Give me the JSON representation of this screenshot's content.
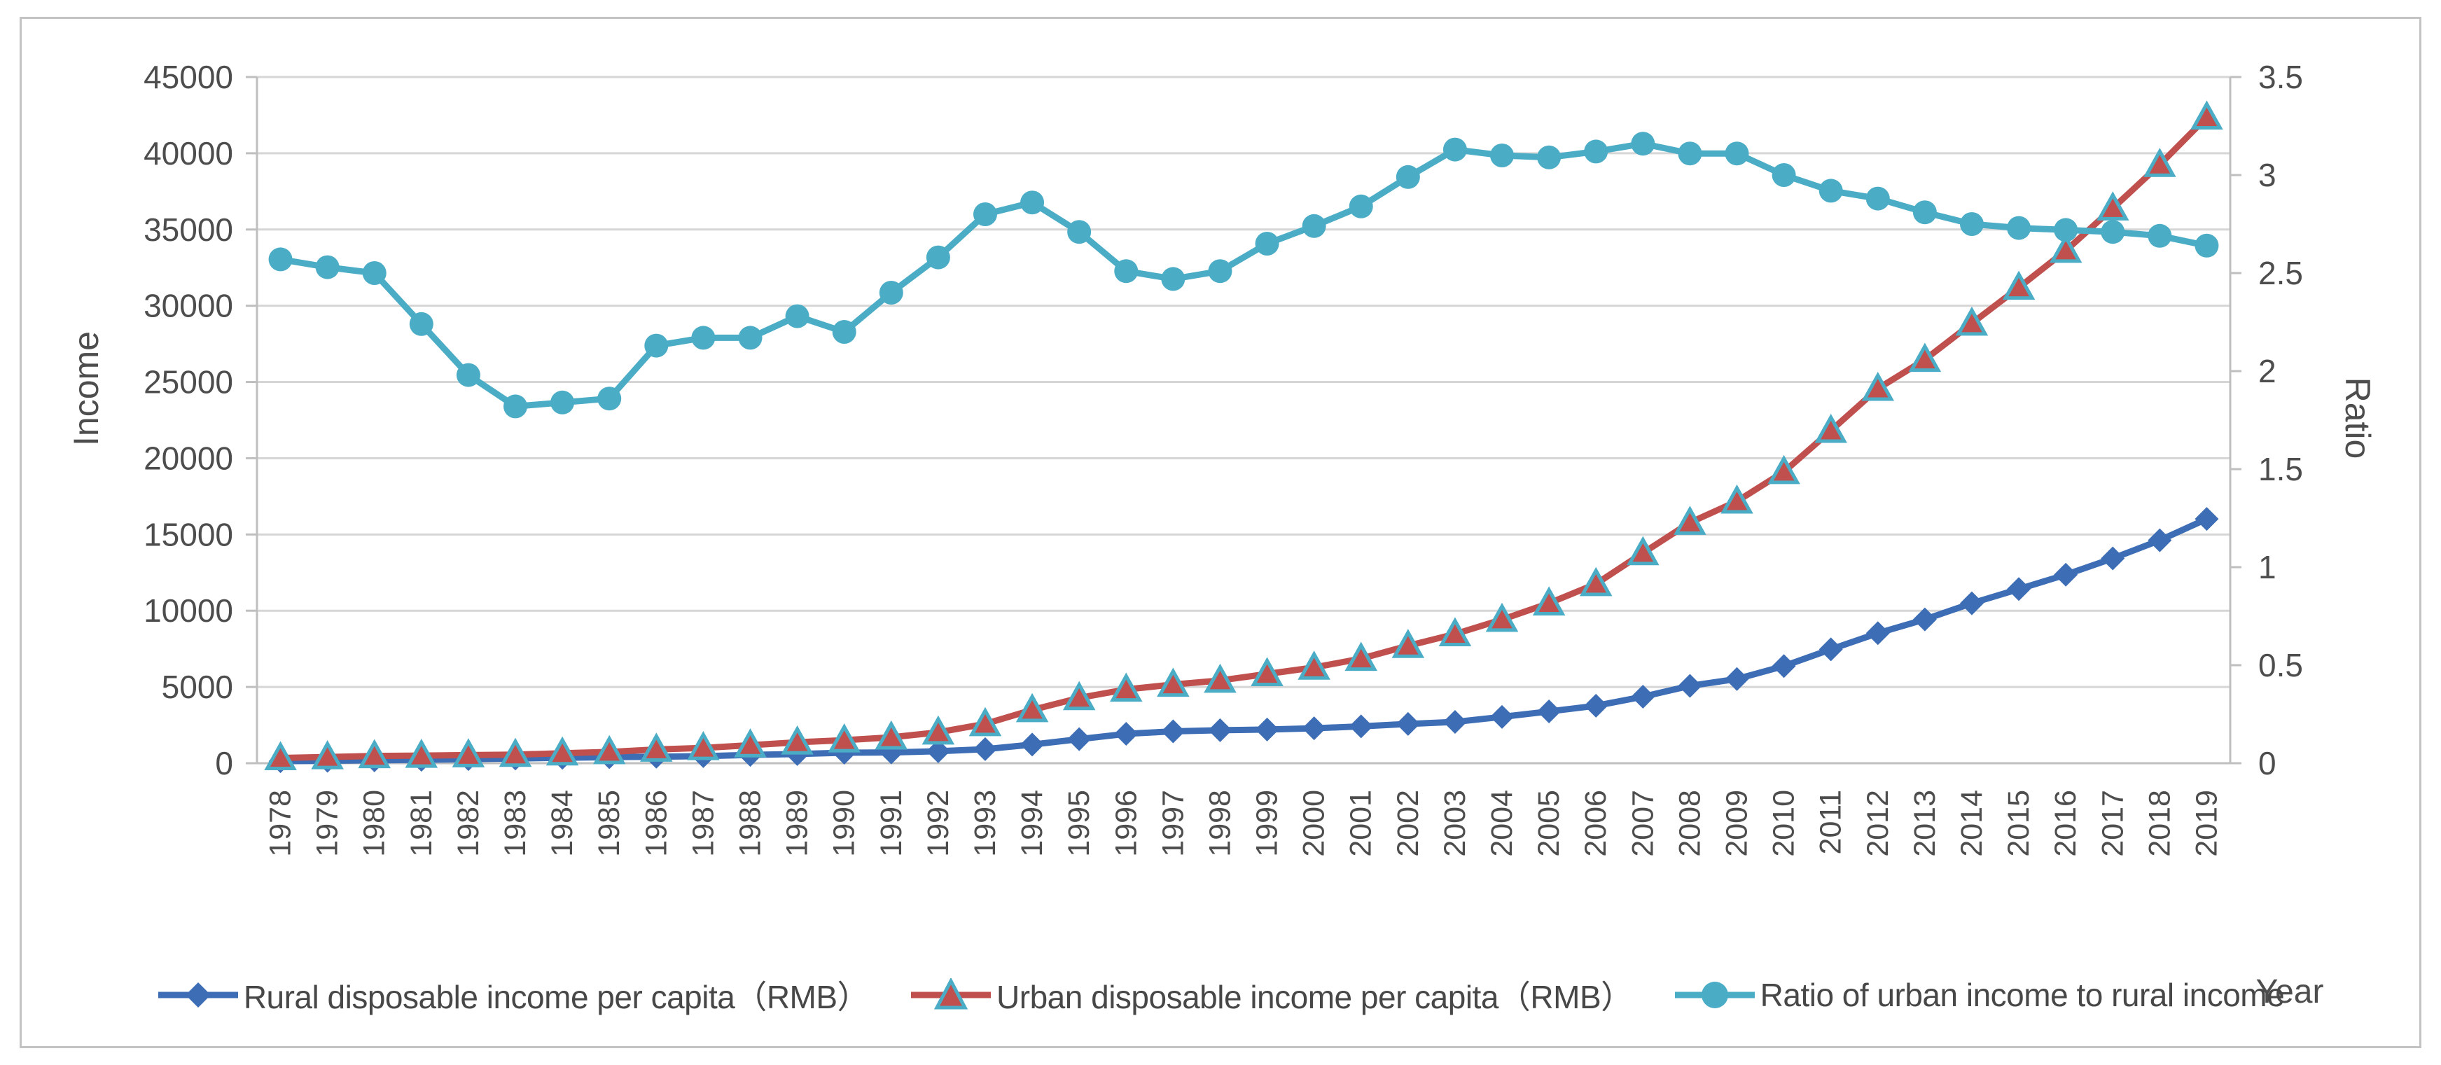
{
  "chart_data": {
    "type": "line",
    "title": "",
    "x": [
      "1978",
      "1979",
      "1980",
      "1981",
      "1982",
      "1983",
      "1984",
      "1985",
      "1986",
      "1987",
      "1988",
      "1989",
      "1990",
      "1991",
      "1992",
      "1993",
      "1994",
      "1995",
      "1996",
      "1997",
      "1998",
      "1999",
      "2000",
      "2001",
      "2002",
      "2003",
      "2004",
      "2005",
      "2006",
      "2007",
      "2008",
      "2009",
      "2010",
      "2011",
      "2012",
      "2013",
      "2014",
      "2015",
      "2016",
      "2017",
      "2018",
      "2019"
    ],
    "series": [
      {
        "name": "Rural disposable income per capita（RMB）",
        "axis": "left",
        "marker": "diamond",
        "color": "#3c6db5",
        "marker_fill": "#3c6db5",
        "marker_stroke": "#3c6db5",
        "values": [
          133.6,
          160.2,
          191.3,
          223.4,
          270.1,
          309.8,
          355.3,
          397.6,
          423.8,
          462.6,
          544.9,
          601.5,
          686.3,
          708.6,
          784.0,
          921.6,
          1221.0,
          1577.7,
          1926.1,
          2090.1,
          2162.0,
          2210.3,
          2292,
          2415,
          2576,
          2707,
          3039,
          3396,
          3769,
          4362,
          5074,
          5523,
          6370,
          7469,
          8529,
          9429.6,
          10488.9,
          11421.7,
          12363.4,
          13432.4,
          14617.0,
          16020.7
        ]
      },
      {
        "name": "Urban disposable income per capita（RMB）",
        "axis": "left",
        "marker": "triangle",
        "color": "#c0504d",
        "marker_fill": "#c0504d",
        "marker_stroke": "#4bacc6",
        "values": [
          343.4,
          405.0,
          477.6,
          500.4,
          535.3,
          564.6,
          652.1,
          739.1,
          900.9,
          1002.1,
          1180.2,
          1373.9,
          1510.2,
          1700.6,
          2026.6,
          2577.4,
          3496.2,
          4283.0,
          4838.9,
          5160.3,
          5425.1,
          5854.0,
          6280.0,
          6859.6,
          7702.8,
          8472.2,
          9421.6,
          10493.0,
          11759.5,
          13785.8,
          15780.8,
          17174.7,
          19109.4,
          21809.8,
          24564.7,
          26467.0,
          28843.9,
          31194.8,
          33616.2,
          36396.2,
          39250.8,
          42358.8
        ]
      },
      {
        "name": "Ratio of urban income to rural income",
        "axis": "right",
        "marker": "circle",
        "color": "#4bacc6",
        "marker_fill": "#4bacc6",
        "marker_stroke": "#4bacc6",
        "values": [
          2.57,
          2.53,
          2.5,
          2.24,
          1.98,
          1.82,
          1.84,
          1.86,
          2.13,
          2.17,
          2.17,
          2.28,
          2.2,
          2.4,
          2.58,
          2.8,
          2.86,
          2.71,
          2.51,
          2.47,
          2.51,
          2.65,
          2.74,
          2.84,
          2.99,
          3.13,
          3.1,
          3.09,
          3.12,
          3.16,
          3.11,
          3.11,
          3.0,
          2.92,
          2.88,
          2.81,
          2.75,
          2.73,
          2.72,
          2.71,
          2.69,
          2.64
        ]
      }
    ],
    "left_axis": {
      "label": "Income",
      "min": 0,
      "max": 45000,
      "step": 5000
    },
    "right_axis": {
      "label": "Ratio",
      "min": 0,
      "max": 3.5,
      "step": 0.5
    },
    "x_axis": {
      "label": "Year"
    },
    "grid": true,
    "legend_position": "bottom"
  },
  "style": {
    "grid_color": "#d6d6d6",
    "axis_color": "#bfbfbf",
    "text_color": "#4d4d4d"
  }
}
